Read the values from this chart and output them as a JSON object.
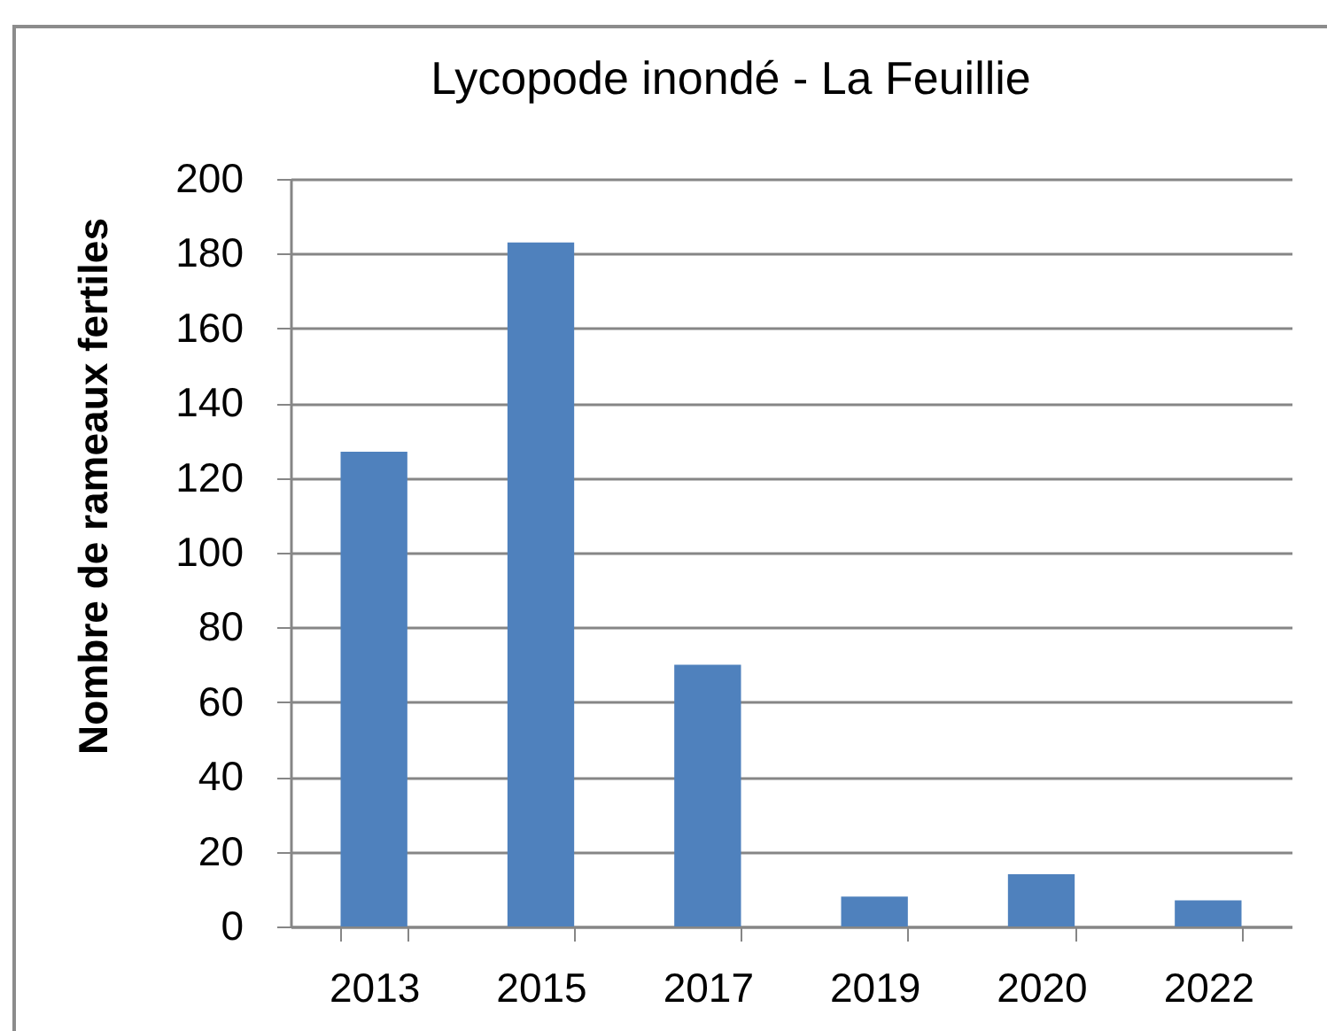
{
  "chart_data": {
    "type": "bar",
    "title": "Lycopode inondé - La Feuillie",
    "ylabel": "Nombre de rameaux fertiles",
    "categories": [
      "2013",
      "2015",
      "2017",
      "2019",
      "2020",
      "2022"
    ],
    "values": [
      127,
      183,
      70,
      8,
      14,
      7
    ],
    "color": "#4f81bd",
    "ylim": [
      0,
      200
    ],
    "yticks": [
      0,
      20,
      40,
      60,
      80,
      100,
      120,
      140,
      160,
      180,
      200
    ],
    "grid": "y"
  }
}
